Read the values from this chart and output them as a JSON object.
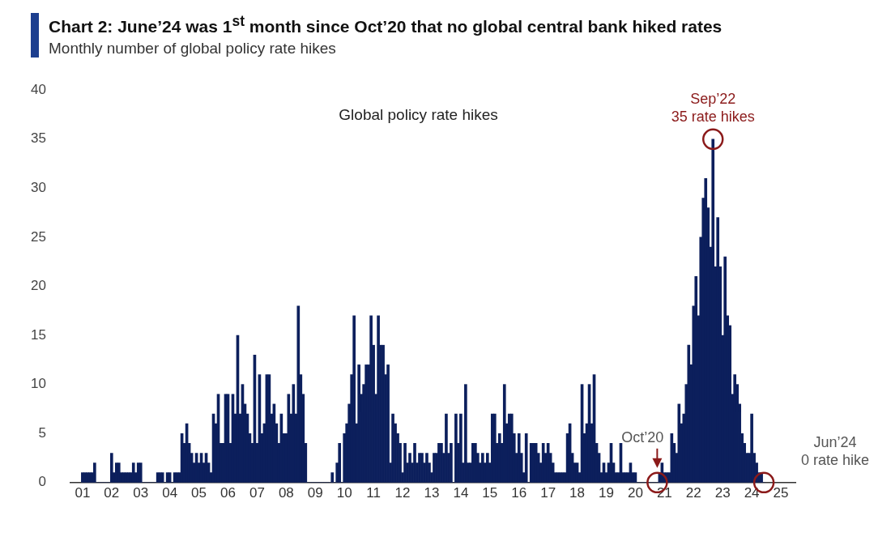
{
  "chart_data": {
    "type": "bar",
    "title": "Chart 2: June’24 was 1$^{st}$ month since Oct’20 that no global central bank hiked rates",
    "subtitle": "Monthly number of global policy rate hikes",
    "x": [
      "2001-01",
      "2001-02",
      "2001-03",
      "2001-04",
      "2001-05",
      "2001-06",
      "2001-07",
      "2001-08",
      "2001-09",
      "2001-10",
      "2001-11",
      "2001-12",
      "2002-01",
      "2002-02",
      "2002-03",
      "2002-04",
      "2002-05",
      "2002-06",
      "2002-07",
      "2002-08",
      "2002-09",
      "2002-10",
      "2002-11",
      "2002-12",
      "2003-01",
      "2003-02",
      "2003-03",
      "2003-04",
      "2003-05",
      "2003-06",
      "2003-07",
      "2003-08",
      "2003-09",
      "2003-10",
      "2003-11",
      "2003-12",
      "2004-01",
      "2004-02",
      "2004-03",
      "2004-04",
      "2004-05",
      "2004-06",
      "2004-07",
      "2004-08",
      "2004-09",
      "2004-10",
      "2004-11",
      "2004-12",
      "2005-01",
      "2005-02",
      "2005-03",
      "2005-04",
      "2005-05",
      "2005-06",
      "2005-07",
      "2005-08",
      "2005-09",
      "2005-10",
      "2005-11",
      "2005-12",
      "2006-01",
      "2006-02",
      "2006-03",
      "2006-04",
      "2006-05",
      "2006-06",
      "2006-07",
      "2006-08",
      "2006-09",
      "2006-10",
      "2006-11",
      "2006-12",
      "2007-01",
      "2007-02",
      "2007-03",
      "2007-04",
      "2007-05",
      "2007-06",
      "2007-07",
      "2007-08",
      "2007-09",
      "2007-10",
      "2007-11",
      "2007-12",
      "2008-01",
      "2008-02",
      "2008-03",
      "2008-04",
      "2008-05",
      "2008-06",
      "2008-07",
      "2008-08",
      "2008-09",
      "2008-10",
      "2008-11",
      "2008-12",
      "2009-01",
      "2009-02",
      "2009-03",
      "2009-04",
      "2009-05",
      "2009-06",
      "2009-07",
      "2009-08",
      "2009-09",
      "2009-10",
      "2009-11",
      "2009-12",
      "2010-01",
      "2010-02",
      "2010-03",
      "2010-04",
      "2010-05",
      "2010-06",
      "2010-07",
      "2010-08",
      "2010-09",
      "2010-10",
      "2010-11",
      "2010-12",
      "2011-01",
      "2011-02",
      "2011-03",
      "2011-04",
      "2011-05",
      "2011-06",
      "2011-07",
      "2011-08",
      "2011-09",
      "2011-10",
      "2011-11",
      "2011-12",
      "2012-01",
      "2012-02",
      "2012-03",
      "2012-04",
      "2012-05",
      "2012-06",
      "2012-07",
      "2012-08",
      "2012-09",
      "2012-10",
      "2012-11",
      "2012-12",
      "2013-01",
      "2013-02",
      "2013-03",
      "2013-04",
      "2013-05",
      "2013-06",
      "2013-07",
      "2013-08",
      "2013-09",
      "2013-10",
      "2013-11",
      "2013-12",
      "2014-01",
      "2014-02",
      "2014-03",
      "2014-04",
      "2014-05",
      "2014-06",
      "2014-07",
      "2014-08",
      "2014-09",
      "2014-10",
      "2014-11",
      "2014-12",
      "2015-01",
      "2015-02",
      "2015-03",
      "2015-04",
      "2015-05",
      "2015-06",
      "2015-07",
      "2015-08",
      "2015-09",
      "2015-10",
      "2015-11",
      "2015-12",
      "2016-01",
      "2016-02",
      "2016-03",
      "2016-04",
      "2016-05",
      "2016-06",
      "2016-07",
      "2016-08",
      "2016-09",
      "2016-10",
      "2016-11",
      "2016-12",
      "2017-01",
      "2017-02",
      "2017-03",
      "2017-04",
      "2017-05",
      "2017-06",
      "2017-07",
      "2017-08",
      "2017-09",
      "2017-10",
      "2017-11",
      "2017-12",
      "2018-01",
      "2018-02",
      "2018-03",
      "2018-04",
      "2018-05",
      "2018-06",
      "2018-07",
      "2018-08",
      "2018-09",
      "2018-10",
      "2018-11",
      "2018-12",
      "2019-01",
      "2019-02",
      "2019-03",
      "2019-04",
      "2019-05",
      "2019-06",
      "2019-07",
      "2019-08",
      "2019-09",
      "2019-10",
      "2019-11",
      "2019-12",
      "2020-01",
      "2020-02",
      "2020-03",
      "2020-04",
      "2020-05",
      "2020-06",
      "2020-07",
      "2020-08",
      "2020-09",
      "2020-10",
      "2020-11",
      "2020-12",
      "2021-01",
      "2021-02",
      "2021-03",
      "2021-04",
      "2021-05",
      "2021-06",
      "2021-07",
      "2021-08",
      "2021-09",
      "2021-10",
      "2021-11",
      "2021-12",
      "2022-01",
      "2022-02",
      "2022-03",
      "2022-04",
      "2022-05",
      "2022-06",
      "2022-07",
      "2022-08",
      "2022-09",
      "2022-10",
      "2022-11",
      "2022-12",
      "2023-01",
      "2023-02",
      "2023-03",
      "2023-04",
      "2023-05",
      "2023-06",
      "2023-07",
      "2023-08",
      "2023-09",
      "2023-10",
      "2023-11",
      "2023-12",
      "2024-01",
      "2024-02",
      "2024-03",
      "2024-04",
      "2024-05",
      "2024-06"
    ],
    "series": [
      {
        "name": "Global policy rate hikes",
        "color": "#0c1f5c",
        "values": [
          1,
          1,
          1,
          1,
          1,
          2,
          0,
          0,
          0,
          0,
          0,
          0,
          3,
          1,
          2,
          2,
          1,
          1,
          1,
          1,
          1,
          2,
          1,
          2,
          2,
          0,
          0,
          0,
          0,
          0,
          0,
          1,
          1,
          1,
          0,
          1,
          1,
          0,
          1,
          1,
          1,
          5,
          4,
          6,
          4,
          3,
          2,
          3,
          2,
          3,
          2,
          3,
          2,
          1,
          7,
          6,
          9,
          4,
          4,
          9,
          9,
          4,
          9,
          7,
          15,
          7,
          10,
          8,
          7,
          5,
          4,
          13,
          4,
          11,
          5,
          6,
          11,
          11,
          7,
          8,
          6,
          4,
          7,
          5,
          5,
          9,
          7,
          10,
          7,
          18,
          11,
          9,
          4,
          0,
          0,
          0,
          0,
          0,
          0,
          0,
          0,
          0,
          0,
          1,
          0,
          2,
          4,
          0,
          5,
          6,
          8,
          11,
          17,
          6,
          12,
          9,
          10,
          12,
          12,
          17,
          14,
          9,
          17,
          14,
          14,
          11,
          12,
          2,
          7,
          6,
          5,
          4,
          1,
          4,
          2,
          3,
          2,
          4,
          2,
          3,
          3,
          2,
          3,
          2,
          1,
          3,
          3,
          4,
          4,
          3,
          7,
          3,
          4,
          0,
          7,
          4,
          7,
          2,
          10,
          2,
          2,
          4,
          4,
          3,
          2,
          3,
          2,
          3,
          2,
          7,
          7,
          4,
          5,
          4,
          10,
          6,
          7,
          7,
          5,
          3,
          5,
          3,
          1,
          5,
          0,
          4,
          4,
          4,
          3,
          2,
          4,
          3,
          4,
          3,
          2,
          1,
          1,
          1,
          1,
          1,
          5,
          6,
          3,
          2,
          2,
          1,
          10,
          5,
          6,
          10,
          6,
          11,
          4,
          3,
          1,
          2,
          1,
          2,
          4,
          2,
          1,
          1,
          4,
          1,
          1,
          1,
          2,
          1,
          1,
          0,
          0,
          0,
          0,
          0,
          0,
          0,
          0,
          0,
          1,
          2,
          1,
          1,
          1,
          5,
          4,
          3,
          8,
          6,
          7,
          10,
          14,
          12,
          18,
          21,
          17,
          25,
          29,
          31,
          28,
          24,
          35,
          22,
          27,
          22,
          15,
          23,
          17,
          16,
          9,
          11,
          10,
          8,
          5,
          4,
          3,
          3,
          7,
          3,
          2,
          1,
          1,
          0
        ]
      }
    ],
    "xlim": [
      "2000-08",
      "2025-07"
    ],
    "xticks": [
      {
        "value": "2001-01",
        "label": "01"
      },
      {
        "value": "2002-01",
        "label": "02"
      },
      {
        "value": "2003-01",
        "label": "03"
      },
      {
        "value": "2004-01",
        "label": "04"
      },
      {
        "value": "2005-01",
        "label": "05"
      },
      {
        "value": "2006-01",
        "label": "06"
      },
      {
        "value": "2007-01",
        "label": "07"
      },
      {
        "value": "2008-01",
        "label": "08"
      },
      {
        "value": "2009-01",
        "label": "09"
      },
      {
        "value": "2010-01",
        "label": "10"
      },
      {
        "value": "2011-01",
        "label": "11"
      },
      {
        "value": "2012-01",
        "label": "12"
      },
      {
        "value": "2013-01",
        "label": "13"
      },
      {
        "value": "2014-01",
        "label": "14"
      },
      {
        "value": "2015-01",
        "label": "15"
      },
      {
        "value": "2016-01",
        "label": "16"
      },
      {
        "value": "2017-01",
        "label": "17"
      },
      {
        "value": "2018-01",
        "label": "18"
      },
      {
        "value": "2019-01",
        "label": "19"
      },
      {
        "value": "2020-01",
        "label": "20"
      },
      {
        "value": "2021-01",
        "label": "21"
      },
      {
        "value": "2022-01",
        "label": "22"
      },
      {
        "value": "2023-01",
        "label": "23"
      },
      {
        "value": "2024-01",
        "label": "24"
      },
      {
        "value": "2025-01",
        "label": "25"
      }
    ],
    "ylim": [
      0,
      40
    ],
    "yticks": [
      0,
      5,
      10,
      15,
      20,
      25,
      30,
      35,
      40
    ],
    "annotations": [
      {
        "text": "Sep’22\n35 rate hikes",
        "x": "2022-09",
        "y": 35
      },
      {
        "text": "Oct’20",
        "x": "2020-10",
        "y": 0
      },
      {
        "text": "Jun’24\n0 rate hike",
        "x": "2024-06",
        "y": 0
      }
    ]
  }
}
